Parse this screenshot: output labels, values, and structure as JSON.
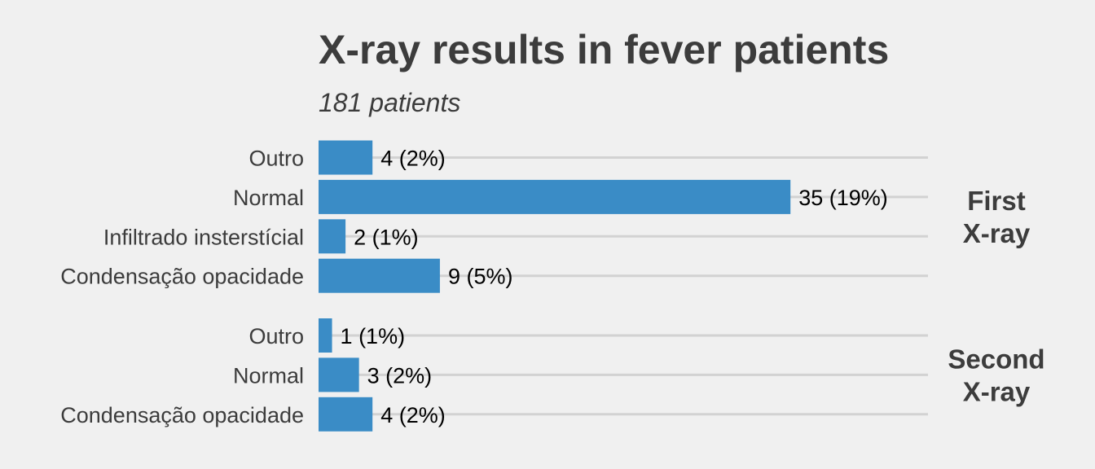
{
  "chart_data": {
    "type": "bar",
    "orientation": "horizontal",
    "title": "X-ray results in fever patients",
    "subtitle": "181 patients",
    "bar_color": "#3a8cc6",
    "grid_color": "#d2d2d2",
    "background": "#f0f0f0",
    "facets": [
      {
        "label": "First\nX-ray",
        "categories": [
          "Outro",
          "Normal",
          "Infiltrado insterstícial",
          "Condensação opacidade"
        ],
        "values": [
          4,
          35,
          2,
          9
        ],
        "labels": [
          "4 (2%)",
          "35 (19%)",
          "2 (1%)",
          "9 (5%)"
        ]
      },
      {
        "label": "Second\nX-ray",
        "categories": [
          "Outro",
          "Normal",
          "Condensação opacidade"
        ],
        "values": [
          1,
          3,
          4
        ],
        "labels": [
          "1 (1%)",
          "3 (2%)",
          "4 (2%)"
        ]
      }
    ],
    "xlim": [
      0,
      45.2
    ],
    "grid": true,
    "x_axis_visible": false
  }
}
